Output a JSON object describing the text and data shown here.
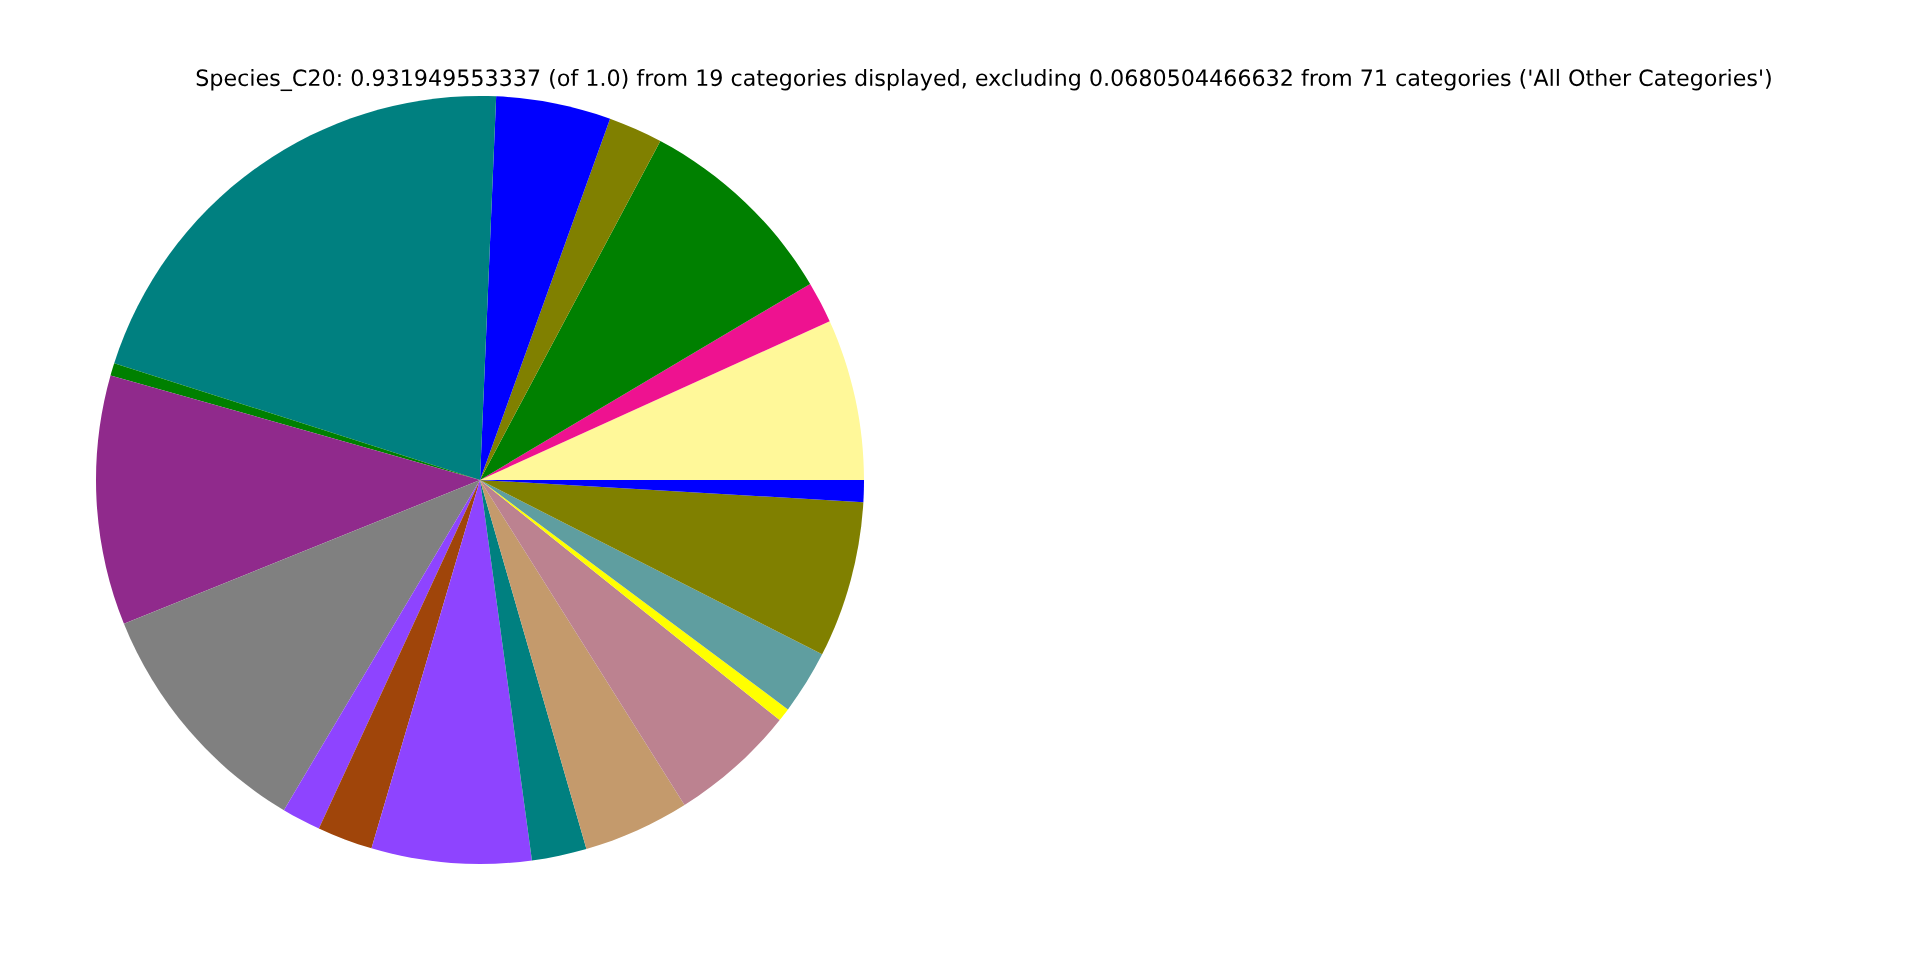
{
  "chart_data": {
    "type": "pie",
    "title": "Species_C20: 0.931949553337 (of 1.0) from 19 categories displayed, excluding 0.0680504466632 from 71 categories ('All Other Categories')",
    "categories": [
      null,
      null,
      null,
      null,
      null,
      null,
      null,
      null,
      null,
      null,
      null,
      null,
      null,
      null,
      null,
      null,
      null,
      null,
      null
    ],
    "values": [
      6.78,
      1.75,
      8.69,
      2.28,
      4.83,
      20.75,
      0.53,
      10.5,
      10.36,
      1.64,
      2.33,
      6.72,
      2.31,
      4.47,
      5.31,
      0.56,
      2.69,
      6.58,
      0.92
    ],
    "colors": [
      "#fff899",
      "#ee1290",
      "#008000",
      "#808000",
      "#0000ff",
      "#008080",
      "#008000",
      "#902a8c",
      "#808080",
      "#8e44ff",
      "#a0450a",
      "#8e44ff",
      "#008080",
      "#c49a6c",
      "#bc8290",
      "#ffff00",
      "#5f9ea0",
      "#808000",
      "#0000ff"
    ]
  }
}
